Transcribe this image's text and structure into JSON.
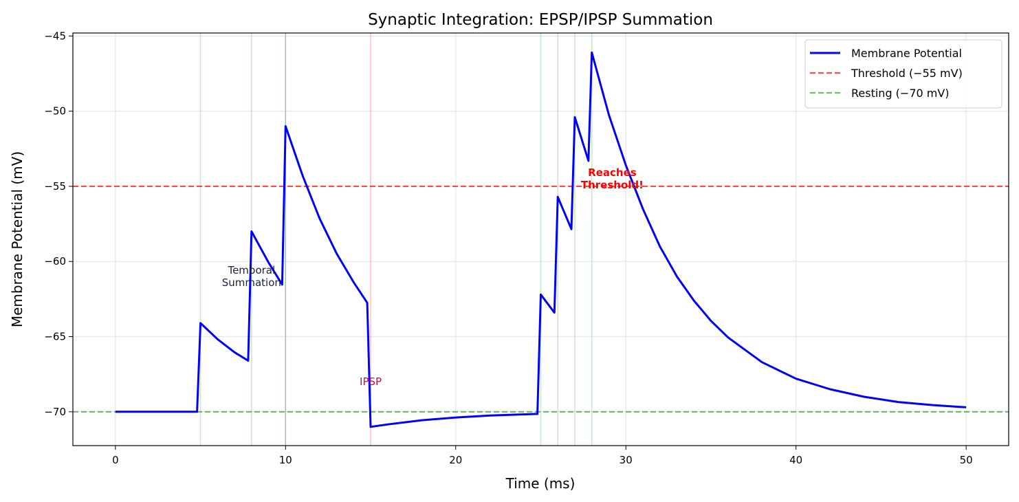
{
  "chart_data": {
    "type": "line",
    "title": "Synaptic Integration: EPSP/IPSP Summation",
    "xlabel": "Time (ms)",
    "ylabel": "Membrane Potential (mV)",
    "xlim": [
      -2.5,
      52.5
    ],
    "ylim": [
      -72.25,
      -44.8
    ],
    "xticks": [
      0,
      10,
      20,
      30,
      40,
      50
    ],
    "yticks": [
      -70,
      -65,
      -60,
      -55,
      -50,
      -45
    ],
    "xtick_labels": [
      "0",
      "10",
      "20",
      "30",
      "40",
      "50"
    ],
    "ytick_labels": [
      "−70",
      "−65",
      "−60",
      "−55",
      "−50",
      "−45"
    ],
    "grid": true,
    "legend_position": "top-right",
    "series": [
      {
        "name": "Membrane Potential",
        "color": "#0000ff",
        "style": "solid",
        "x": [
          0,
          4.8,
          5,
          6,
          7,
          7.8,
          8,
          9,
          9.8,
          10,
          11,
          12,
          13,
          14,
          14.8,
          15,
          16,
          18,
          20,
          22,
          24.8,
          25,
          25.8,
          26,
          26.8,
          27,
          27.8,
          28,
          29,
          30,
          31,
          32,
          33,
          34,
          35,
          36,
          38,
          40,
          42,
          44,
          46,
          48,
          50
        ],
        "y": [
          -70,
          -70,
          -64.1,
          -65.17,
          -66.04,
          -66.6,
          -58,
          -60.07,
          -61.54,
          -51,
          -54.29,
          -57.14,
          -59.47,
          -61.38,
          -62.75,
          -71,
          -70.84,
          -70.56,
          -70.38,
          -70.25,
          -70.14,
          -62.2,
          -63.4,
          -55.7,
          -57.85,
          -50.4,
          -53.3,
          -46.1,
          -50.24,
          -53.6,
          -56.5,
          -59.0,
          -61.0,
          -62.6,
          -63.95,
          -65.05,
          -66.7,
          -67.8,
          -68.5,
          -69.0,
          -69.35,
          -69.55,
          -69.7
        ]
      }
    ],
    "hlines": [
      {
        "name": "Threshold (−55 mV)",
        "y": -55,
        "color": "#ff0000",
        "style": "dashed"
      },
      {
        "name": "Resting (−70 mV)",
        "y": -70,
        "color": "#2ca02c",
        "style": "dashed"
      }
    ],
    "vlines": [
      {
        "x": 5,
        "color": "#2ca02c",
        "kind": "EPSP"
      },
      {
        "x": 8,
        "color": "#2ca02c",
        "kind": "EPSP"
      },
      {
        "x": 10,
        "color": "#2ca02c",
        "kind": "EPSP"
      },
      {
        "x": 10,
        "color": "#2ca02c",
        "kind": "EPSP"
      },
      {
        "x": 15,
        "color": "#ff0000",
        "kind": "IPSP"
      },
      {
        "x": 25,
        "color": "#2ca02c",
        "kind": "EPSP"
      },
      {
        "x": 26,
        "color": "#2ca02c",
        "kind": "EPSP"
      },
      {
        "x": 27,
        "color": "#2ca02c",
        "kind": "EPSP"
      },
      {
        "x": 28,
        "color": "#2ca02c",
        "kind": "EPSP"
      }
    ],
    "annotations": [
      {
        "text": [
          "Temporal",
          "Summation"
        ],
        "x": 8,
        "y": -61,
        "color": "#1a2238",
        "bold": false
      },
      {
        "text": [
          "IPSP"
        ],
        "x": 15,
        "y": -68,
        "color": "#c8102e",
        "bold": false
      },
      {
        "text": [
          "Reaches",
          "Threshold!"
        ],
        "x": 29.2,
        "y": -54.5,
        "color": "#ff0000",
        "bold": true
      }
    ]
  }
}
